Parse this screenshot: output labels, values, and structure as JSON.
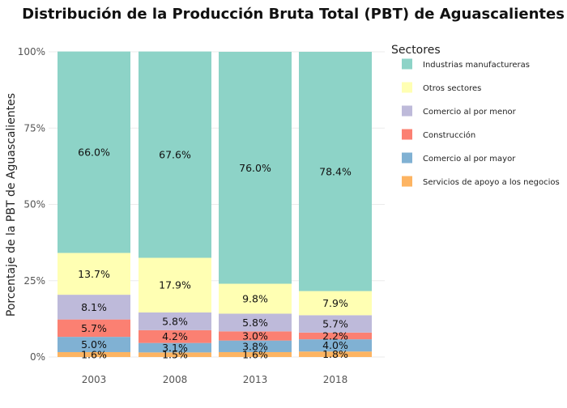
{
  "chart_data": {
    "type": "bar",
    "stacked": "percent",
    "title": "Distribución de la Producción Bruta Total (PBT) de Aguascalientes",
    "xlabel": "",
    "ylabel": "Porcentaje de la PBT de Aguascalientes",
    "ylim": [
      0,
      100
    ],
    "yticks": [
      "0%",
      "25%",
      "50%",
      "75%",
      "100%"
    ],
    "categories": [
      "2003",
      "2008",
      "2013",
      "2018"
    ],
    "grid": true,
    "legend": {
      "title": "Sectores",
      "position": "right"
    },
    "series": [
      {
        "name": "Servicios de apoyo a los negocios",
        "color": "#fdb462",
        "values": [
          1.6,
          1.5,
          1.6,
          1.8
        ],
        "labels": [
          "1.6%",
          "1.5%",
          "1.6%",
          "1.8%"
        ]
      },
      {
        "name": "Comercio al por mayor",
        "color": "#80b1d3",
        "values": [
          5.0,
          3.1,
          3.8,
          4.0
        ],
        "labels": [
          "5.0%",
          "3.1%",
          "3.8%",
          "4.0%"
        ]
      },
      {
        "name": "Construcción",
        "color": "#fb8072",
        "values": [
          5.7,
          4.2,
          3.0,
          2.2
        ],
        "labels": [
          "5.7%",
          "4.2%",
          "3.0%",
          "2.2%"
        ]
      },
      {
        "name": "Comercio al por menor",
        "color": "#bebada",
        "values": [
          8.1,
          5.8,
          5.8,
          5.7
        ],
        "labels": [
          "8.1%",
          "5.8%",
          "5.8%",
          "5.7%"
        ]
      },
      {
        "name": "Otros sectores",
        "color": "#ffffb3",
        "values": [
          13.7,
          17.9,
          9.8,
          7.9
        ],
        "labels": [
          "13.7%",
          "17.9%",
          "9.8%",
          "7.9%"
        ]
      },
      {
        "name": "Industrias manufactureras",
        "color": "#8dd3c7",
        "values": [
          66.0,
          67.6,
          76.0,
          78.4
        ],
        "labels": [
          "66.0%",
          "67.6%",
          "76.0%",
          "78.4%"
        ]
      }
    ],
    "legend_order": [
      "Industrias manufactureras",
      "Otros sectores",
      "Comercio al por menor",
      "Construcción",
      "Comercio al por mayor",
      "Servicios de apoyo a los negocios"
    ]
  }
}
